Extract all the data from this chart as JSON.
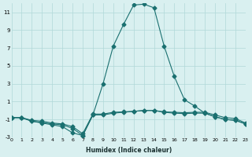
{
  "xlabel": "Humidex (Indice chaleur)",
  "ylabel": "",
  "background_color": "#d9f0f0",
  "plot_bg_color": "#d9f0f0",
  "line_color": "#1a7070",
  "grid_color": "#b0d8d8",
  "xlim": [
    0,
    23
  ],
  "ylim": [
    -3,
    12
  ],
  "xticks": [
    0,
    1,
    2,
    3,
    4,
    5,
    6,
    7,
    8,
    9,
    10,
    11,
    12,
    13,
    14,
    15,
    16,
    17,
    18,
    19,
    20,
    21,
    22,
    23
  ],
  "yticks": [
    -3,
    -1,
    1,
    3,
    5,
    7,
    9,
    11
  ],
  "series": [
    {
      "x": [
        0,
        1,
        2,
        3,
        4,
        5,
        6,
        7,
        8,
        9,
        10,
        11,
        12,
        13,
        14,
        15,
        16,
        17,
        18,
        19,
        20,
        21,
        22,
        23
      ],
      "y": [
        -0.8,
        -0.8,
        -1.2,
        -1.4,
        -1.6,
        -1.8,
        -2.5,
        -2.8,
        -0.5,
        3.0,
        7.2,
        9.6,
        11.8,
        11.9,
        11.5,
        7.2,
        3.8,
        1.2,
        0.5,
        -0.3,
        -0.7,
        -1.0,
        -1.1,
        -1.5
      ]
    },
    {
      "x": [
        0,
        1,
        2,
        3,
        4,
        5,
        6,
        7,
        8,
        9,
        10,
        11,
        12,
        13,
        14,
        15,
        16,
        17,
        18,
        19,
        20,
        21,
        22,
        23
      ],
      "y": [
        -0.8,
        -0.8,
        -1.2,
        -1.35,
        -1.5,
        -1.6,
        -2.0,
        -2.8,
        -0.5,
        -0.5,
        -0.3,
        -0.2,
        -0.1,
        0.0,
        0.0,
        -0.2,
        -0.3,
        -0.35,
        -0.3,
        -0.3,
        -0.7,
        -1.0,
        -1.1,
        -1.5
      ]
    },
    {
      "x": [
        0,
        1,
        2,
        3,
        4,
        5,
        6,
        7,
        8,
        9,
        10,
        11,
        12,
        13,
        14,
        15,
        16,
        17,
        18,
        19,
        20,
        21,
        22,
        23
      ],
      "y": [
        -0.8,
        -0.8,
        -1.1,
        -1.2,
        -1.4,
        -1.5,
        -1.8,
        -2.6,
        -0.4,
        -0.4,
        -0.2,
        -0.15,
        -0.1,
        0.0,
        0.0,
        -0.15,
        -0.2,
        -0.25,
        -0.2,
        -0.2,
        -0.5,
        -0.8,
        -0.9,
        -1.4
      ]
    }
  ]
}
